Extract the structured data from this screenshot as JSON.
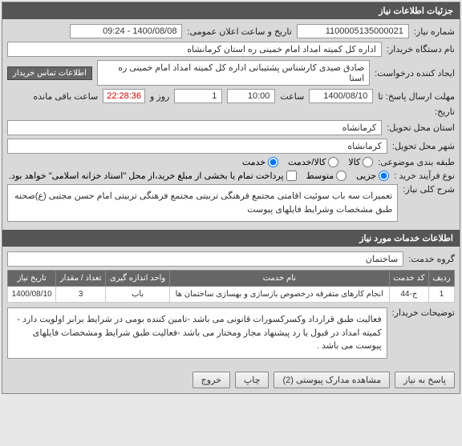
{
  "header": {
    "title": "جزئیات اطلاعات نیاز"
  },
  "form": {
    "need_no_label": "شماره نیاز:",
    "need_no": "1100005135000021",
    "announce_label": "تاریخ و ساعت اعلان عمومی:",
    "announce_value": "1400/08/08 - 09:24",
    "org_label": "نام دستگاه خریدار:",
    "org_value": "اداره کل کمیته امداد امام خمینی  ره  استان کرمانشاه",
    "creator_label": "ایجاد کننده درخواست:",
    "creator_value": "صادق  صیدی  کارشناس پشتیبانی  اداره کل کمیته امداد امام خمینی  ره  استا",
    "contact_btn": "اطلاعات تماس خریدار",
    "deadline_label": "مهلت ارسال پاسخ:    تا",
    "deadline_date": "1400/08/10",
    "time_label": "ساعت",
    "deadline_time": "10:00",
    "day_label": "روز و",
    "days_left": "1",
    "countdown": "22:28:36",
    "remain_label": "ساعت باقی مانده",
    "date_only_label": "تاریخ:",
    "province_label": "استان محل تحویل:",
    "province": "کرمانشاه",
    "city_label": "شهر محل تحویل:",
    "city": "کرمانشاه",
    "category_label": "طبقه بندی موضوعی:",
    "cat_goods": "کالا",
    "cat_service": "کالا/خدمت",
    "cat_serviceonly": "خدمت",
    "purchase_type_label": "نوع فرآیند خرید :",
    "pt_small": "جزیی",
    "pt_medium": "متوسط",
    "pt_note": "پرداخت تمام یا بخشی از مبلغ خرید،از محل \"اسناد خزانه اسلامی\" خواهد بود.",
    "keywords_label": "شرح کلی نیاز:",
    "keywords_value": "تعمیرات سه باب سوئیت اقامتی مجتمع فرهنگی تربیتی مجتمع فرهنگی تربیتی امام حسن مجتبی (ع)صحنه طبق مشخصات وشرایط فایلهای پیوست"
  },
  "services": {
    "header": "اطلاعات خدمات مورد نیاز",
    "group_label": "گروه خدمت:",
    "group_value": "ساختمان",
    "columns": {
      "row": "ردیف",
      "code": "کد خدمت",
      "name": "نام خدمت",
      "unit": "واحد اندازه گیری",
      "qty": "تعداد / مقدار",
      "date": "تاریخ نیاز"
    },
    "rows": [
      {
        "row": "1",
        "code": "ج-44",
        "name": "انجام کارهای متفرقه درخصوص بازسازی و بهسازی ساختمان ها",
        "unit": "باب",
        "qty": "3",
        "date": "1400/08/10"
      }
    ],
    "buyer_note_label": "توضیحات خریدار:",
    "buyer_note": "فعالیت طبق قرارداد وکسرکسورات قانونی می باشد -تامین کننده بومی در شرایط برابر اولویت دارد - کمیته امداد در قبول یا رد پیشنهاد مجاز ومختار می باشد -فعالیت طبق شرایط ومشخصات فایلهای پیوست می باشد ."
  },
  "buttons": {
    "reply": "پاسخ به نیاز",
    "attachments": "مشاهده مدارک پیوستی (2)",
    "print": "چاپ",
    "exit": "خروج"
  },
  "colors": {
    "header_bg": "#555555",
    "panel_bg": "#d9d9d9",
    "countdown_color": "#cc0000"
  }
}
